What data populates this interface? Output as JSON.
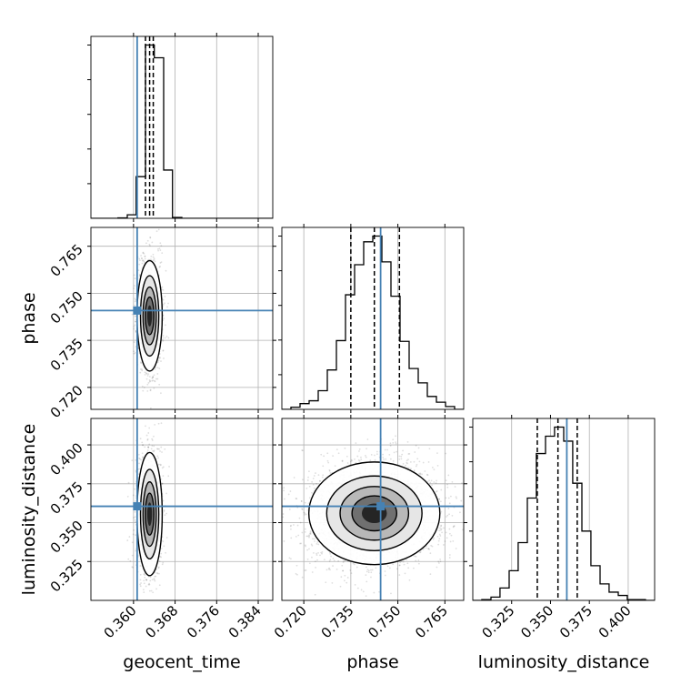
{
  "chart_data": {
    "type": "corner",
    "parameters": [
      {
        "name": "geocent_time",
        "label": "geocent_time",
        "range": [
          0.3518,
          0.3868
        ],
        "ticks": [
          0.36,
          0.368,
          0.376,
          0.384
        ],
        "tick_labels": [
          "0.360",
          "0.368",
          "0.376",
          "0.384"
        ],
        "truth": 0.3607,
        "quantiles": [
          0.3623,
          0.3631,
          0.3638
        ]
      },
      {
        "name": "phase",
        "label": "phase",
        "range": [
          0.713,
          0.771
        ],
        "ticks": [
          0.72,
          0.735,
          0.75,
          0.765
        ],
        "tick_labels": [
          "0.720",
          "0.735",
          "0.750",
          "0.765"
        ],
        "truth": 0.7445,
        "quantiles": [
          0.735,
          0.7425,
          0.7505
        ]
      },
      {
        "name": "luminosity_distance",
        "label": "luminosity_distance",
        "range": [
          0.3,
          0.417
        ],
        "ticks": [
          0.325,
          0.35,
          0.375,
          0.4
        ],
        "tick_labels": [
          "0.325",
          "0.350",
          "0.375",
          "0.400"
        ],
        "truth": 0.3605,
        "quantiles": [
          0.3415,
          0.3548,
          0.3672
        ]
      }
    ],
    "histograms": [
      {
        "param": "geocent_time",
        "bin_edges": [
          0.3518,
          0.3535,
          0.3553,
          0.357,
          0.3588,
          0.3605,
          0.3623,
          0.364,
          0.3658,
          0.3675,
          0.3693,
          0.371,
          0.3728,
          0.3745,
          0.3763,
          0.378,
          0.3798,
          0.3815,
          0.3833,
          0.385,
          0.3868
        ],
        "counts": [
          0,
          0,
          0,
          1,
          8,
          95,
          395,
          366,
          110,
          2,
          0,
          0,
          0,
          0,
          0,
          0,
          0,
          0,
          0,
          0
        ]
      },
      {
        "param": "phase",
        "bin_edges": [
          0.713,
          0.7159,
          0.7188,
          0.7217,
          0.7246,
          0.7275,
          0.7304,
          0.7333,
          0.7362,
          0.7391,
          0.742,
          0.7449,
          0.7478,
          0.7507,
          0.7536,
          0.7565,
          0.7594,
          0.7623,
          0.7652,
          0.7681,
          0.771
        ],
        "counts": [
          0,
          3,
          8,
          12,
          26,
          55,
          96,
          160,
          202,
          234,
          242,
          206,
          158,
          95,
          57,
          37,
          18,
          10,
          4,
          0
        ]
      },
      {
        "param": "luminosity_distance",
        "bin_edges": [
          0.3,
          0.3058,
          0.3117,
          0.3175,
          0.3234,
          0.3292,
          0.3351,
          0.3409,
          0.3468,
          0.3526,
          0.3585,
          0.3643,
          0.3702,
          0.376,
          0.3819,
          0.3877,
          0.3936,
          0.3994,
          0.4053,
          0.4111,
          0.417
        ],
        "counts": [
          0,
          1,
          4,
          15,
          36,
          70,
          124,
          178,
          199,
          210,
          193,
          142,
          84,
          42,
          20,
          10,
          6,
          1,
          1,
          0
        ]
      }
    ],
    "joint_panels": [
      {
        "x": "geocent_time",
        "y": "phase",
        "center": [
          0.3631,
          0.7428
        ],
        "sigma": [
          0.0011,
          0.008
        ],
        "n_points": 1700
      },
      {
        "x": "geocent_time",
        "y": "luminosity_distance",
        "center": [
          0.3631,
          0.3555
        ],
        "sigma": [
          0.0011,
          0.018
        ],
        "n_points": 1700
      },
      {
        "x": "phase",
        "y": "luminosity_distance",
        "center": [
          0.7425,
          0.356
        ],
        "sigma": [
          0.0095,
          0.015
        ],
        "n_points": 3500
      }
    ],
    "truth_color": "#4682b4",
    "quantile_style": "dashed",
    "xlabel": [
      "geocent_time",
      "phase",
      "luminosity_distance"
    ],
    "ylabel": [
      "phase",
      "luminosity_distance"
    ]
  }
}
